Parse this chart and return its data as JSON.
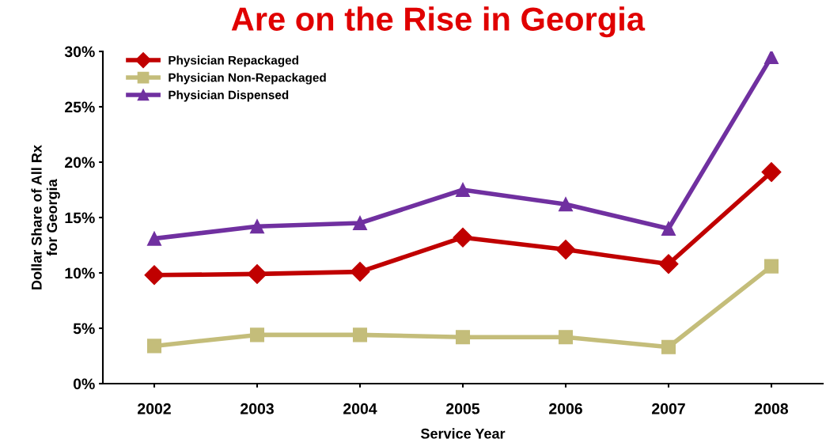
{
  "chart_data": {
    "type": "line",
    "title": "Are on the Rise in Georgia",
    "xlabel": "Service Year",
    "ylabel": "Dollar Share of All Rx\nfor Georgia",
    "categories": [
      "2002",
      "2003",
      "2004",
      "2005",
      "2006",
      "2007",
      "2008"
    ],
    "series": [
      {
        "name": "Physician Repackaged",
        "color": "#c00000",
        "marker": "diamond",
        "values": [
          9.8,
          9.9,
          10.1,
          13.2,
          12.1,
          10.8,
          19.1
        ]
      },
      {
        "name": "Physician Non-Repackaged",
        "color": "#c4bd7a",
        "marker": "square",
        "values": [
          3.4,
          4.4,
          4.4,
          4.2,
          4.2,
          3.3,
          10.6
        ]
      },
      {
        "name": "Physician Dispensed",
        "color": "#7030a0",
        "marker": "triangle",
        "values": [
          13.1,
          14.2,
          14.5,
          17.5,
          16.2,
          14.0,
          29.5
        ]
      }
    ],
    "ylim": [
      0,
      30
    ],
    "yticks": [
      {
        "value": 0,
        "label": "0%"
      },
      {
        "value": 5,
        "label": "5%"
      },
      {
        "value": 10,
        "label": "10%"
      },
      {
        "value": 15,
        "label": "15%"
      },
      {
        "value": 20,
        "label": "20%"
      },
      {
        "value": 25,
        "label": "25%"
      },
      {
        "value": 30,
        "label": "30%"
      }
    ],
    "grid": false,
    "legend": "top left",
    "line_style": "solid"
  }
}
